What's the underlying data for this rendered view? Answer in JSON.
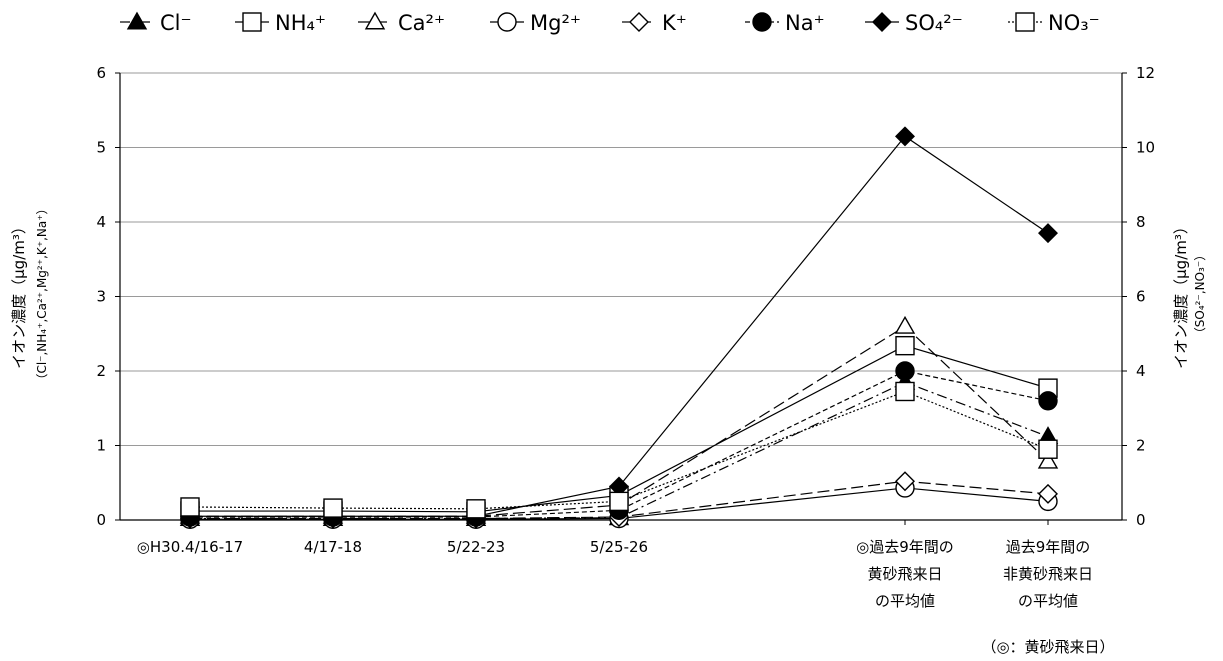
{
  "chart_data": {
    "type": "line",
    "categories": [
      [
        "◎H30.4/16-17"
      ],
      [
        "4/17-18"
      ],
      [
        "5/22-23"
      ],
      [
        "5/25-26"
      ],
      [
        "◎過去9年間の",
        "黄砂飛来日",
        "の平均値"
      ],
      [
        "過去9年間の",
        "非黄砂飛来日",
        "の平均値"
      ]
    ],
    "left_axis": {
      "label_line1": "イオン濃度（μg/m³）",
      "label_line2": "（Cl⁻,NH₄⁺,Ca²⁺,Mg²⁺,K⁺,Na⁺）",
      "ylim": [
        0,
        6
      ],
      "ticks": [
        0,
        1,
        2,
        3,
        4,
        5,
        6
      ]
    },
    "right_axis": {
      "label_line1": "イオン濃度（μg/m³）",
      "label_line2": "（SO₄²⁻,NO₃⁻）",
      "ylim": [
        0,
        12
      ],
      "ticks": [
        0,
        2,
        4,
        6,
        8,
        10,
        12
      ]
    },
    "grid": true,
    "legend_position": "top",
    "note": "（◎：黄砂飛来日）",
    "series": [
      {
        "name": "Cl⁻",
        "axis": "left",
        "marker": "triangle-filled",
        "line": "dashdot",
        "values": [
          0.02,
          0.02,
          0.02,
          0.03,
          1.85,
          1.12
        ]
      },
      {
        "name": "NH₄⁺",
        "axis": "left",
        "marker": "square-open",
        "line": "solid",
        "values": [
          0.12,
          0.12,
          0.11,
          0.33,
          2.34,
          1.77
        ]
      },
      {
        "name": "Ca²⁺",
        "axis": "left",
        "marker": "triangle-open",
        "line": "longdash",
        "values": [
          0.05,
          0.05,
          0.05,
          0.2,
          2.6,
          0.79
        ]
      },
      {
        "name": "Mg²⁺",
        "axis": "left",
        "marker": "circle-open",
        "line": "solid",
        "values": [
          0.01,
          0.01,
          0.01,
          0.02,
          0.43,
          0.25
        ]
      },
      {
        "name": "K⁺",
        "axis": "left",
        "marker": "diamond-open",
        "line": "longdash",
        "values": [
          0.02,
          0.02,
          0.02,
          0.04,
          0.52,
          0.35
        ]
      },
      {
        "name": "Na⁺",
        "axis": "left",
        "marker": "circle-filled",
        "line": "shortdash",
        "values": [
          0.04,
          0.04,
          0.04,
          0.13,
          2.0,
          1.6
        ]
      },
      {
        "name": "SO₄²⁻",
        "axis": "right",
        "marker": "diamond-filled",
        "line": "solid",
        "values": [
          0.1,
          0.1,
          0.1,
          0.9,
          10.3,
          7.7
        ]
      },
      {
        "name": "NO₃⁻",
        "axis": "right",
        "marker": "square-open",
        "line": "dotted",
        "values": [
          0.35,
          0.32,
          0.3,
          0.5,
          3.45,
          1.9
        ]
      }
    ]
  }
}
